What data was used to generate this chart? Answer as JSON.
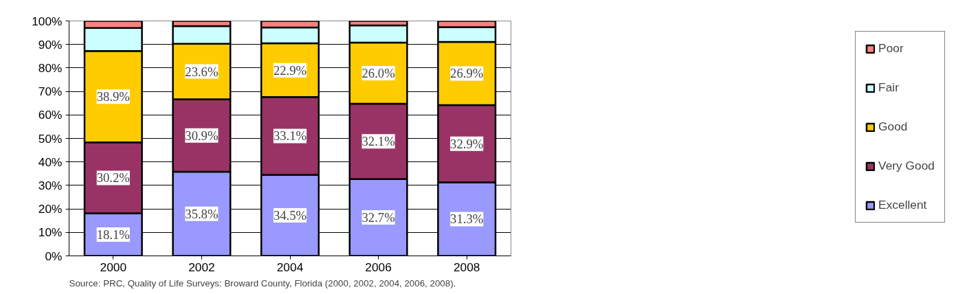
{
  "chart_data": {
    "type": "bar",
    "stacked": true,
    "categories": [
      "2000",
      "2002",
      "2004",
      "2006",
      "2008"
    ],
    "series": [
      {
        "name": "Excellent",
        "color": "#9999ff",
        "values": [
          18.1,
          35.8,
          34.5,
          32.7,
          31.3
        ],
        "value_labels": [
          "18.1%",
          "35.8%",
          "34.5%",
          "32.7%",
          "31.3%"
        ]
      },
      {
        "name": "Very Good",
        "color": "#993366",
        "values": [
          30.2,
          30.9,
          33.1,
          32.1,
          32.9
        ],
        "value_labels": [
          "30.2%",
          "30.9%",
          "33.1%",
          "32.1%",
          "32.9%"
        ]
      },
      {
        "name": "Good",
        "color": "#ffcc00",
        "values": [
          38.9,
          23.6,
          22.9,
          26.0,
          26.9
        ],
        "value_labels": [
          "38.9%",
          "23.6%",
          "22.9%",
          "26.0%",
          "26.9%"
        ]
      },
      {
        "name": "Fair",
        "color": "#ccffff",
        "values": [
          9.8,
          7.5,
          6.7,
          7.3,
          6.3
        ]
      },
      {
        "name": "Poor",
        "color": "#ff8080",
        "values": [
          3.0,
          2.2,
          2.8,
          1.9,
          2.6
        ]
      }
    ],
    "ylim": [
      0,
      100
    ],
    "yticks": [
      {
        "value": 0,
        "label": "0%"
      },
      {
        "value": 10,
        "label": "10%"
      },
      {
        "value": 20,
        "label": "20%"
      },
      {
        "value": 30,
        "label": "30%"
      },
      {
        "value": 40,
        "label": "40%"
      },
      {
        "value": 50,
        "label": "50%"
      },
      {
        "value": 60,
        "label": "60%"
      },
      {
        "value": 70,
        "label": "70%"
      },
      {
        "value": 80,
        "label": "80%"
      },
      {
        "value": 90,
        "label": "90%"
      },
      {
        "value": 100,
        "label": "100%"
      }
    ],
    "grid": "y",
    "legend": "right",
    "annotations": [
      "Source:  PRC, Quality of Life Surveys:  Broward County, Florida (2000, 2002, 2004, 2006, 2008)."
    ]
  }
}
